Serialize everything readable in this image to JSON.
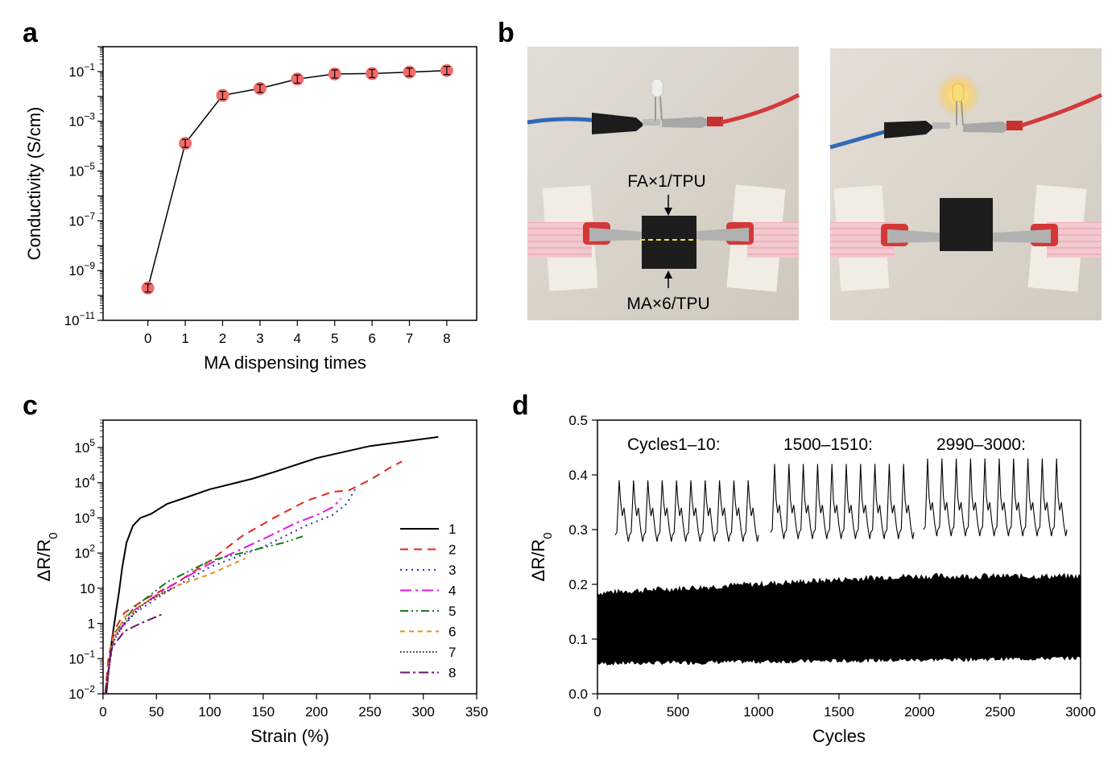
{
  "panels": {
    "a": {
      "label": "a"
    },
    "b": {
      "label": "b"
    },
    "c": {
      "label": "c"
    },
    "d": {
      "label": "d"
    }
  },
  "photos": {
    "left": {
      "top_label": "FA×1/TPU",
      "bottom_label": "MA×6/TPU",
      "led_state": "off"
    },
    "right": {
      "led_state": "on"
    }
  },
  "chart_data": [
    {
      "panel": "a",
      "type": "scatter",
      "xlabel": "MA dispensing times",
      "ylabel": "Conductivity (S/cm)",
      "yscale": "log",
      "ylim": [
        1e-11,
        1
      ],
      "xlim": [
        -1.2,
        8.8
      ],
      "x": [
        0,
        1,
        2,
        3,
        4,
        5,
        6,
        7,
        8
      ],
      "y": [
        2e-10,
        0.00013,
        0.011,
        0.021,
        0.05,
        0.08,
        0.083,
        0.095,
        0.11
      ],
      "marker_color": "#f26b6b",
      "line_color": "#000000",
      "x_ticks": [
        0,
        1,
        2,
        3,
        4,
        5,
        6,
        7,
        8
      ],
      "y_ticks": [
        {
          "exp": "-11",
          "v": -11
        },
        {
          "exp": "-9",
          "v": -9
        },
        {
          "exp": "-7",
          "v": -7
        },
        {
          "exp": "-5",
          "v": -5
        },
        {
          "exp": "-3",
          "v": -3
        },
        {
          "exp": "-1",
          "v": -1
        }
      ]
    },
    {
      "panel": "c",
      "type": "line",
      "xlabel": "Strain (%)",
      "ylabel": "ΔR/R",
      "ylabel_sub": "0",
      "yscale": "log",
      "xlim": [
        0,
        350
      ],
      "ylim": [
        0.01,
        600000
      ],
      "x_ticks": [
        0,
        50,
        100,
        150,
        200,
        250,
        300,
        350
      ],
      "y_ticks": [
        {
          "text": "10",
          "exp": "-2",
          "v": 0.01
        },
        {
          "text": "10",
          "exp": "-1",
          "v": 0.1
        },
        {
          "text": "1",
          "exp": "",
          "v": 1
        },
        {
          "text": "10",
          "exp": "",
          "v": 10
        },
        {
          "text": "10",
          "exp": "2",
          "v": 100
        },
        {
          "text": "10",
          "exp": "3",
          "v": 1000
        },
        {
          "text": "10",
          "exp": "4",
          "v": 10000
        },
        {
          "text": "10",
          "exp": "5",
          "v": 100000
        }
      ],
      "legend_position": "right",
      "series": [
        {
          "name": "1",
          "color": "#000000",
          "dash": "",
          "x": [
            3,
            8,
            12,
            15,
            18,
            22,
            28,
            35,
            45,
            60,
            80,
            100,
            125,
            140,
            160,
            200,
            250,
            314
          ],
          "y": [
            0.01,
            0.3,
            2,
            8,
            40,
            200,
            600,
            1000,
            1300,
            2500,
            4000,
            6500,
            10000,
            13000,
            20000,
            50000,
            110000,
            200000
          ]
        },
        {
          "name": "2",
          "color": "#e1261c",
          "dash": "10 7",
          "x": [
            2,
            5,
            10,
            20,
            40,
            70,
            100,
            130,
            160,
            190,
            215,
            230,
            250,
            270,
            280
          ],
          "y": [
            0.01,
            0.1,
            0.6,
            2,
            5,
            15,
            60,
            300,
            1000,
            3000,
            5500,
            6000,
            12000,
            28000,
            40000
          ]
        },
        {
          "name": "3",
          "color": "#2233cc",
          "dash": "2 5",
          "x": [
            2,
            10,
            30,
            60,
            100,
            150,
            190,
            215,
            228,
            238
          ],
          "y": [
            0.01,
            0.4,
            2,
            8,
            40,
            150,
            600,
            1200,
            2500,
            8000
          ]
        },
        {
          "name": "4",
          "color": "#e019e0",
          "dash": "14 5 3 5",
          "x": [
            2,
            10,
            30,
            60,
            100,
            150,
            180,
            200,
            215,
            223
          ],
          "y": [
            0.01,
            0.4,
            2.5,
            10,
            50,
            250,
            700,
            1200,
            2000,
            3500
          ]
        },
        {
          "name": "5",
          "color": "#177a1f",
          "dash": "10 4 2 4 2 4",
          "x": [
            2,
            10,
            30,
            60,
            100,
            140,
            170,
            187
          ],
          "y": [
            0.01,
            0.5,
            3,
            15,
            60,
            120,
            200,
            300
          ]
        },
        {
          "name": "6",
          "color": "#ee8a1a",
          "dash": "6 5",
          "x": [
            2,
            8,
            20,
            40,
            70,
            100,
            133
          ],
          "y": [
            0.01,
            0.3,
            1.5,
            4,
            12,
            25,
            70
          ]
        },
        {
          "name": "7",
          "color": "#222222",
          "dash": "1.5 2.5",
          "x": [
            2,
            8,
            20,
            35,
            50,
            65
          ],
          "y": [
            0.01,
            0.25,
            1,
            3,
            6,
            10
          ]
        },
        {
          "name": "8",
          "color": "#6a1470",
          "dash": "12 4 3 4",
          "x": [
            2,
            8,
            20,
            35,
            55
          ],
          "y": [
            0.01,
            0.2,
            0.6,
            1,
            1.8
          ]
        }
      ]
    },
    {
      "panel": "d",
      "type": "line",
      "xlabel": "Cycles",
      "ylabel": "ΔR/R",
      "ylabel_sub": "0",
      "xlim": [
        0,
        3000
      ],
      "ylim": [
        0.0,
        0.5
      ],
      "x_ticks": [
        0,
        500,
        1000,
        1500,
        2000,
        2500,
        3000
      ],
      "y_ticks": [
        "0.0",
        "0.1",
        "0.2",
        "0.3",
        "0.4",
        "0.5"
      ],
      "band": {
        "upper_start": 0.185,
        "upper_end": 0.215,
        "lower_start": 0.055,
        "lower_end": 0.065
      },
      "insets": [
        {
          "label": "Cycles1–10:",
          "peak": 0.39,
          "base": 0.29,
          "cycles": 10
        },
        {
          "label": "1500–1510:",
          "peak": 0.42,
          "base": 0.295,
          "cycles": 10
        },
        {
          "label": "2990–3000:",
          "peak": 0.43,
          "base": 0.3,
          "cycles": 10
        }
      ]
    }
  ]
}
